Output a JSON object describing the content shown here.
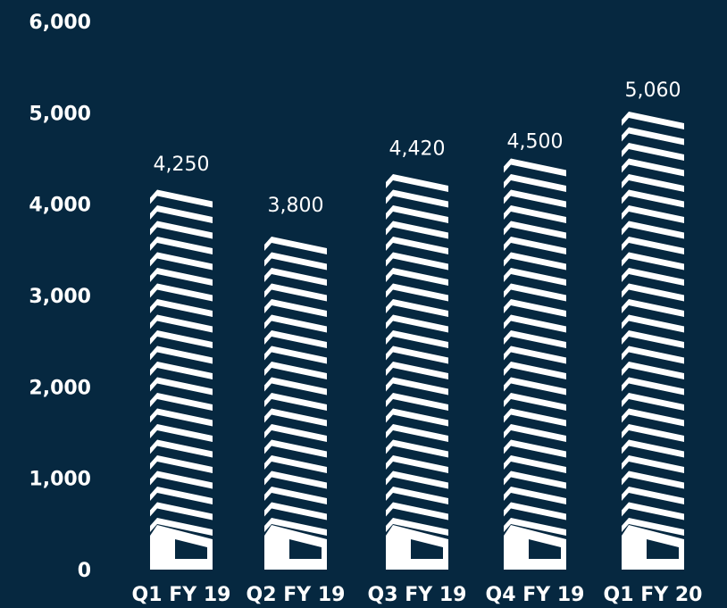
{
  "chart_data": {
    "type": "bar",
    "title": "",
    "xlabel": "",
    "ylabel": "",
    "categories": [
      "Q1 FY 19",
      "Q2 FY 19",
      "Q3 FY 19",
      "Q4 FY 19",
      "Q1 FY 20"
    ],
    "values": [
      4250,
      3800,
      4420,
      4500,
      5060
    ],
    "value_labels": [
      "4,250",
      "3,800",
      "4,420",
      "4,500",
      "5,060"
    ],
    "ylim": [
      0,
      6000
    ],
    "yticks": [
      0,
      1000,
      2000,
      3000,
      4000,
      5000,
      6000
    ],
    "ytick_labels": [
      "0",
      "1,000",
      "2,000",
      "3,000",
      "4,000",
      "5,000",
      "6,000"
    ],
    "grid": false,
    "bar_style": "stacked house icons",
    "colors": {
      "background": "#062840",
      "bars": "#ffffff",
      "text": "#ffffff"
    }
  }
}
